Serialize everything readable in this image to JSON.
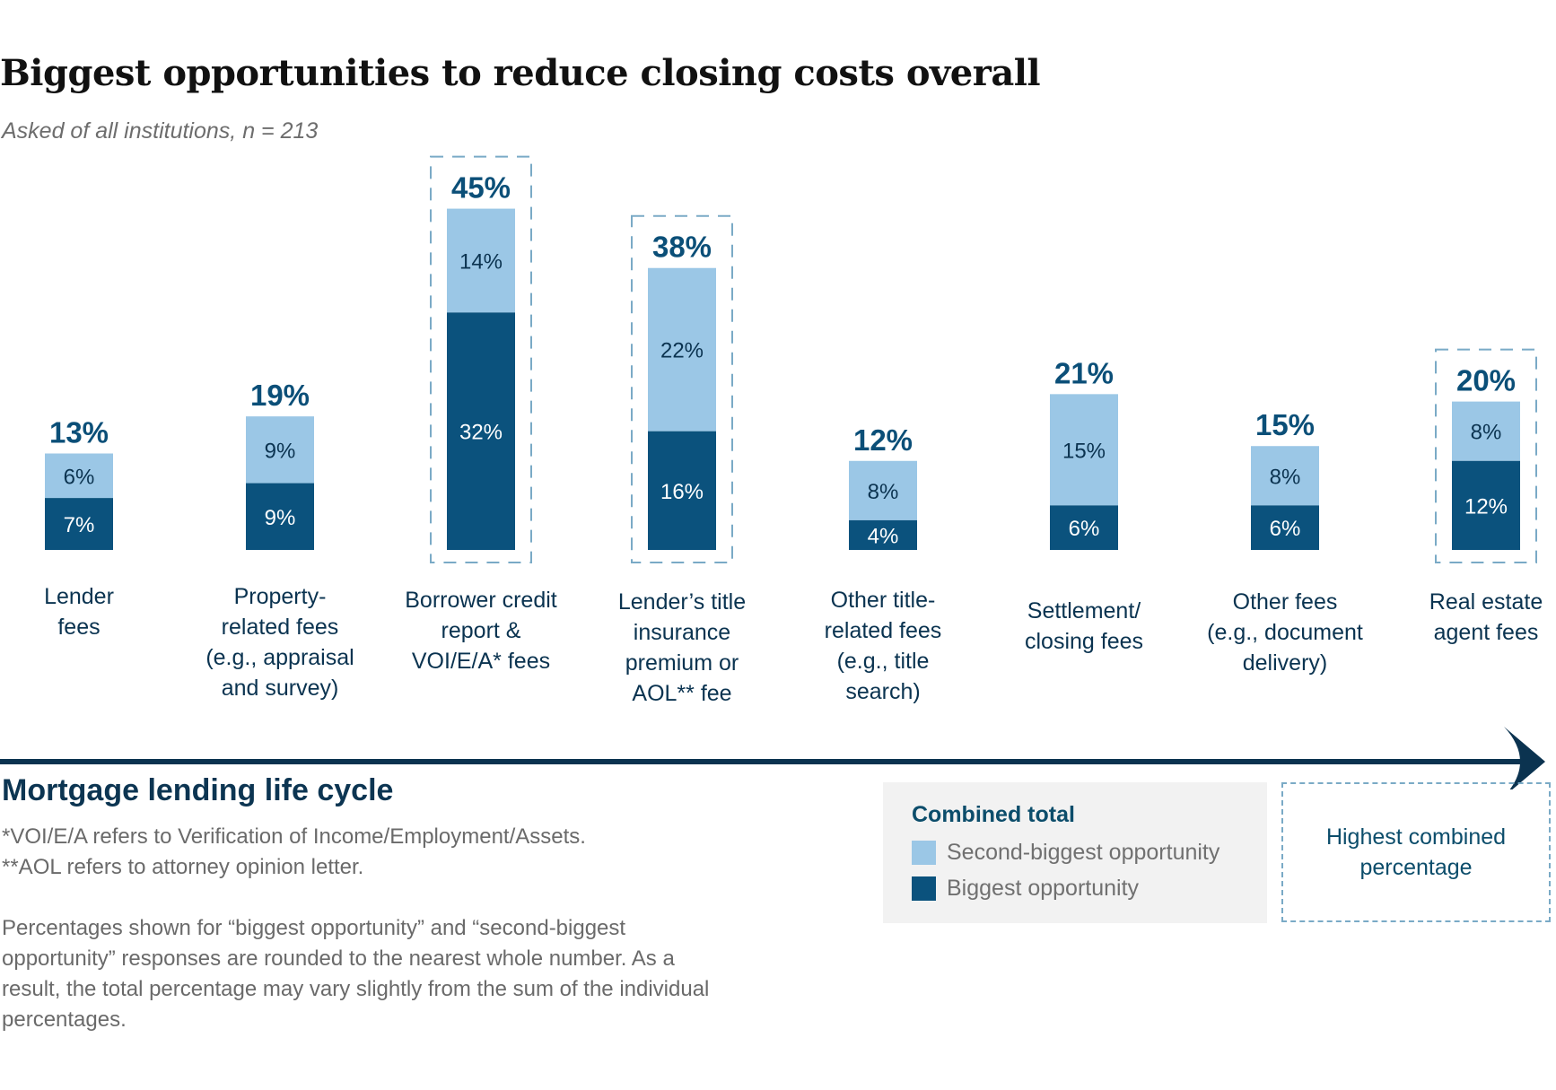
{
  "header": {
    "title": "Biggest opportunities to reduce closing costs overall",
    "subtitle": "Asked of all institutions, n = 213"
  },
  "colors": {
    "biggest": "#0b527d",
    "second": "#9bc7e6",
    "total_label": "#0b4f78",
    "axis": "#0b3350",
    "highlight_border": "#7aaac6",
    "legend_bg": "#f2f2f2"
  },
  "chart_data": {
    "type": "bar",
    "stacked": true,
    "title": "Biggest opportunities to reduce closing costs overall",
    "subtitle": "Asked of all institutions, n = 213",
    "xlabel": "Mortgage lending life cycle",
    "ylabel": "",
    "ylim": [
      0,
      45
    ],
    "grid": false,
    "categories": [
      "Lender fees",
      "Property-related fees (e.g., appraisal and survey)",
      "Borrower credit report & VOI/E/A* fees",
      "Lender’s title insurance premium or AOL** fee",
      "Other title-related fees (e.g., title search)",
      "Settlement/ closing fees",
      "Other fees (e.g., document delivery)",
      "Real estate agent fees"
    ],
    "category_lines": [
      [
        "Lender",
        "fees"
      ],
      [
        "Property-",
        "related fees",
        "(e.g., appraisal",
        "and survey)"
      ],
      [
        "Borrower credit",
        "report &",
        "VOI/E/A* fees"
      ],
      [
        "Lender’s title",
        "insurance",
        "premium or",
        "AOL** fee"
      ],
      [
        "Other title-",
        "related fees",
        "(e.g., title",
        "search)"
      ],
      [
        "Settlement/",
        "closing fees"
      ],
      [
        "Other fees",
        "(e.g., document",
        "delivery)"
      ],
      [
        "Real estate",
        "agent fees"
      ]
    ],
    "series": [
      {
        "name": "Biggest opportunity",
        "values": [
          7,
          9,
          32,
          16,
          4,
          6,
          6,
          12
        ]
      },
      {
        "name": "Second-biggest opportunity",
        "values": [
          6,
          9,
          14,
          22,
          8,
          15,
          8,
          8
        ]
      }
    ],
    "totals": [
      13,
      19,
      45,
      38,
      12,
      21,
      15,
      20
    ],
    "highlighted": [
      false,
      false,
      true,
      true,
      false,
      false,
      false,
      true
    ],
    "value_suffix": "%",
    "legend": {
      "title": "Combined total",
      "entries": [
        "Second-biggest opportunity",
        "Biggest opportunity"
      ],
      "placement": "bottom-right"
    },
    "highlight_key": "Highest combined percentage"
  },
  "footer": {
    "axis_title": "Mortgage lending life cycle",
    "notes": [
      "*VOI/E/A refers to Verification of Income/Employment/Assets.",
      "**AOL refers to attorney opinion letter."
    ],
    "rounding_note": "Percentages shown for “biggest opportunity” and “second-biggest opportunity” responses are rounded to the nearest whole number. As a result, the total percentage may vary slightly from the sum of the individual percentages."
  },
  "legend": {
    "title": "Combined total",
    "second_label": "Second-biggest opportunity",
    "biggest_label": "Biggest opportunity",
    "highlight_label": "Highest combined percentage"
  }
}
